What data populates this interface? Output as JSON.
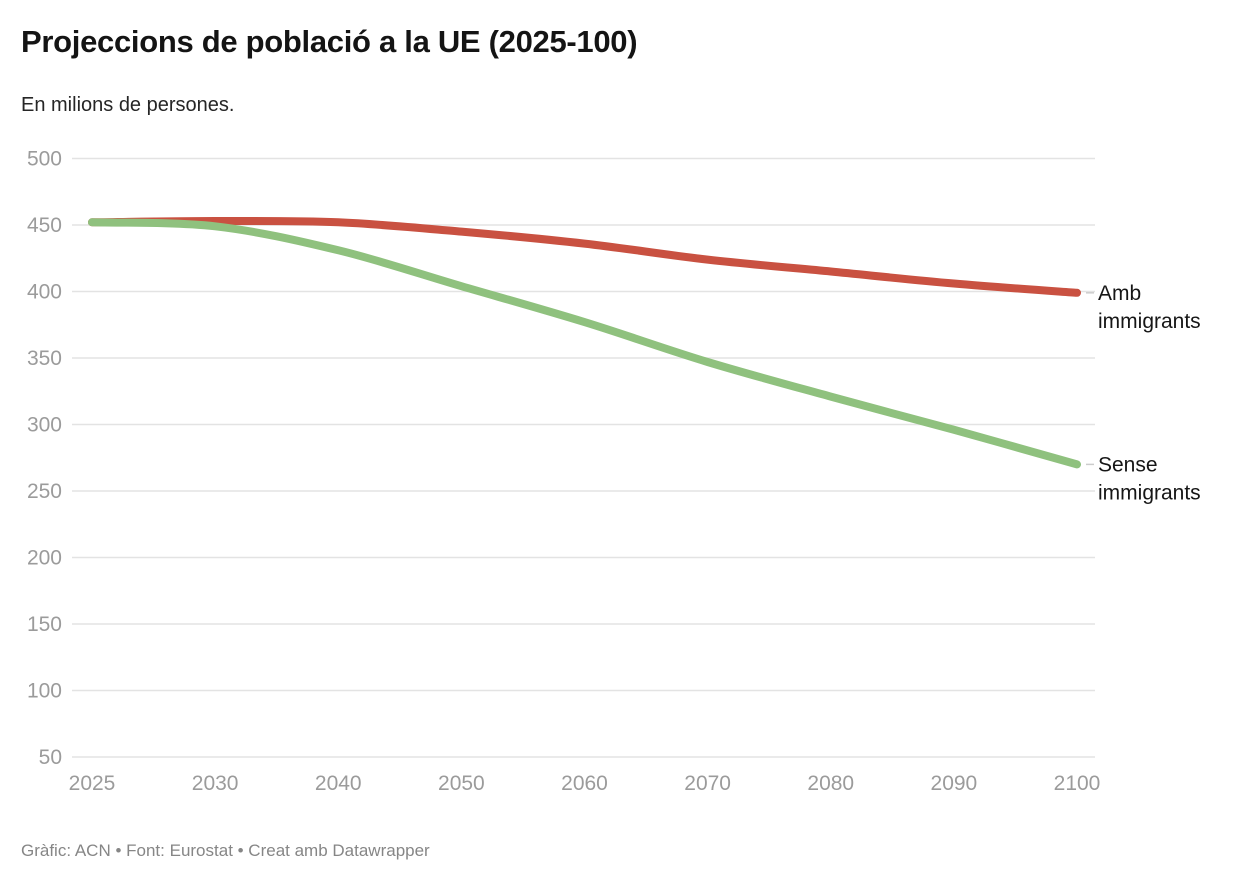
{
  "header": {
    "title": "Projeccions de població a la UE (2025-100)",
    "subtitle": "En milions de persones."
  },
  "footer": {
    "byline": "Gràfic: ACN • Font: Eurostat • Creat amb Datawrapper"
  },
  "chart_data": {
    "type": "line",
    "title": "Projeccions de població a la UE (2025-100)",
    "subtitle": "En milions de persones.",
    "categories": [
      "2025",
      "2030",
      "2040",
      "2050",
      "2060",
      "2070",
      "2080",
      "2090",
      "2100"
    ],
    "series": [
      {
        "name": "Amb immigrants",
        "label_lines": [
          "Amb",
          "immigrants"
        ],
        "color": "#c95141",
        "values": [
          452,
          453,
          452,
          445,
          436,
          424,
          415,
          406,
          399
        ]
      },
      {
        "name": "Sense immigrants",
        "label_lines": [
          "Sense",
          "immigrants"
        ],
        "color": "#8fc17e",
        "values": [
          452,
          449,
          431,
          404,
          377,
          347,
          321,
          296,
          270
        ]
      }
    ],
    "xlabel": "",
    "ylabel": "",
    "ylim": [
      50,
      500
    ],
    "yticks": [
      50,
      100,
      150,
      200,
      250,
      300,
      350,
      400,
      450,
      500
    ],
    "grid": true,
    "legend_position": "direct-right",
    "colors": {
      "grid_line": "#e3e3e3",
      "axis_text": "#9b9b9b",
      "direct_label_text": "#161616",
      "label_connector": "#cccccc",
      "background": "#ffffff"
    }
  }
}
